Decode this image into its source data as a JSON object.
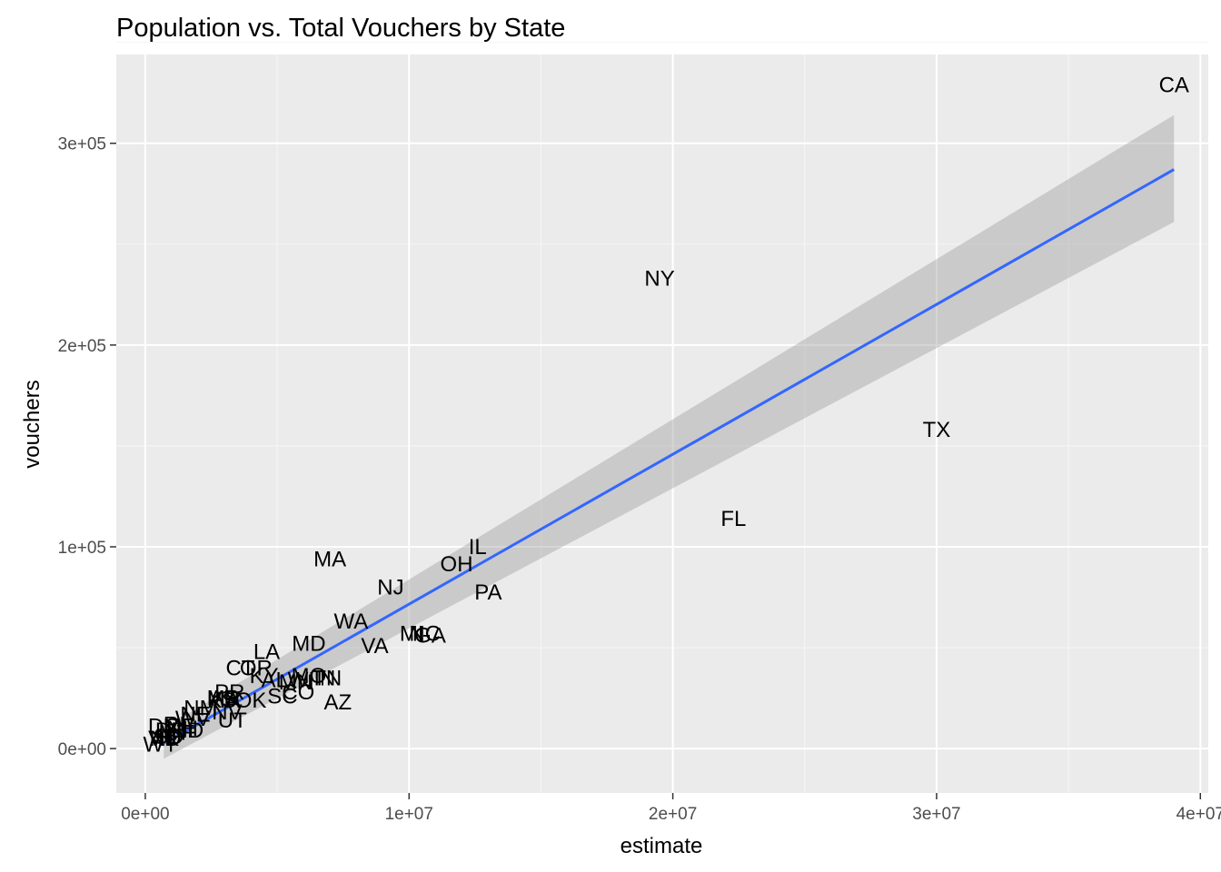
{
  "chart_data": {
    "type": "scatter",
    "title": "Population vs. Total Vouchers by State",
    "xlabel": "estimate",
    "ylabel": "vouchers",
    "xlim": [
      -1100000,
      40300000
    ],
    "ylim": [
      -22000,
      344000
    ],
    "x_ticks": [
      0,
      10000000,
      20000000,
      30000000,
      40000000
    ],
    "x_tick_labels": [
      "0e+00",
      "1e+07",
      "2e+07",
      "3e+07",
      "4e+07"
    ],
    "y_ticks": [
      0,
      100000,
      200000,
      300000
    ],
    "y_tick_labels": [
      "0e+00",
      "1e+05",
      "2e+05",
      "3e+05"
    ],
    "grid": true,
    "points": [
      {
        "label": "CA",
        "x": 39000000,
        "y": 329000
      },
      {
        "label": "NY",
        "x": 19500000,
        "y": 233000
      },
      {
        "label": "TX",
        "x": 30000000,
        "y": 158000
      },
      {
        "label": "FL",
        "x": 22300000,
        "y": 114000
      },
      {
        "label": "IL",
        "x": 12600000,
        "y": 100000
      },
      {
        "label": "OH",
        "x": 11800000,
        "y": 91500
      },
      {
        "label": "MA",
        "x": 7000000,
        "y": 94000
      },
      {
        "label": "NJ",
        "x": 9300000,
        "y": 80000
      },
      {
        "label": "PA",
        "x": 13000000,
        "y": 77500
      },
      {
        "label": "WA",
        "x": 7800000,
        "y": 63000
      },
      {
        "label": "MI",
        "x": 10100000,
        "y": 57000
      },
      {
        "label": "NC",
        "x": 10600000,
        "y": 57000
      },
      {
        "label": "GA",
        "x": 10800000,
        "y": 56000
      },
      {
        "label": "VA",
        "x": 8700000,
        "y": 51000
      },
      {
        "label": "MD",
        "x": 6200000,
        "y": 52000
      },
      {
        "label": "LA",
        "x": 4600000,
        "y": 48000
      },
      {
        "label": "CT",
        "x": 3600000,
        "y": 40000
      },
      {
        "label": "OR",
        "x": 4200000,
        "y": 40000
      },
      {
        "label": "KY",
        "x": 4500000,
        "y": 36000
      },
      {
        "label": "MO",
        "x": 6200000,
        "y": 36000
      },
      {
        "label": "WI",
        "x": 5900000,
        "y": 34000
      },
      {
        "label": "AL",
        "x": 4900000,
        "y": 34000
      },
      {
        "label": "IN",
        "x": 6800000,
        "y": 35000
      },
      {
        "label": "TN",
        "x": 6900000,
        "y": 35000
      },
      {
        "label": "MN",
        "x": 5700000,
        "y": 33000
      },
      {
        "label": "SC",
        "x": 5200000,
        "y": 26000
      },
      {
        "label": "CO",
        "x": 5800000,
        "y": 28000
      },
      {
        "label": "AZ",
        "x": 7300000,
        "y": 23000
      },
      {
        "label": "OK",
        "x": 4000000,
        "y": 24000
      },
      {
        "label": "KS",
        "x": 2900000,
        "y": 24000
      },
      {
        "label": "MS",
        "x": 2950000,
        "y": 25000
      },
      {
        "label": "AR",
        "x": 3000000,
        "y": 25000
      },
      {
        "label": "IA",
        "x": 3200000,
        "y": 24000
      },
      {
        "label": "PR",
        "x": 3200000,
        "y": 28000
      },
      {
        "label": "NM",
        "x": 2100000,
        "y": 20000
      },
      {
        "label": "NV",
        "x": 3100000,
        "y": 18000
      },
      {
        "label": "NE",
        "x": 1900000,
        "y": 17000
      },
      {
        "label": "WV",
        "x": 1800000,
        "y": 15000
      },
      {
        "label": "UT",
        "x": 3300000,
        "y": 14000
      },
      {
        "label": "RI",
        "x": 1100000,
        "y": 12000
      },
      {
        "label": "ME",
        "x": 1300000,
        "y": 11000
      },
      {
        "label": "NH",
        "x": 1400000,
        "y": 10000
      },
      {
        "label": "DC",
        "x": 700000,
        "y": 11000
      },
      {
        "label": "HI",
        "x": 1400000,
        "y": 9000
      },
      {
        "label": "DE",
        "x": 950000,
        "y": 9000
      },
      {
        "label": "ID",
        "x": 1800000,
        "y": 9000
      },
      {
        "label": "MT",
        "x": 1100000,
        "y": 8000
      },
      {
        "label": "SD",
        "x": 880000,
        "y": 6000
      },
      {
        "label": "ND",
        "x": 760000,
        "y": 5000
      },
      {
        "label": "VT",
        "x": 640000,
        "y": 5000
      },
      {
        "label": "AK",
        "x": 730000,
        "y": 5000
      },
      {
        "label": "WY",
        "x": 580000,
        "y": 2000
      }
    ],
    "smooth": {
      "method": "lm",
      "x": [
        700000,
        39000000
      ],
      "y": [
        2500,
        287000
      ],
      "ci_lower": [
        -5000,
        261000
      ],
      "ci_upper": [
        10000,
        314000
      ]
    },
    "colors": {
      "panel_background": "#ebebeb",
      "grid_major": "#ffffff",
      "grid_minor": "#f5f5f5",
      "fit_line": "#3366ff",
      "ci_band": "#999999"
    }
  }
}
